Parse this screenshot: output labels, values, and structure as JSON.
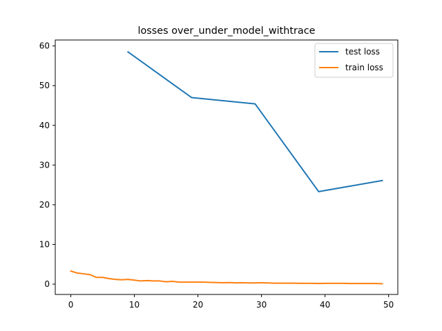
{
  "chart_data": {
    "type": "line",
    "title": "losses over_under_model_withtrace",
    "xlabel": "",
    "ylabel": "",
    "xlim": [
      -2.45,
      51.45
    ],
    "ylim": [
      -2.6,
      61.5
    ],
    "xticks": [
      0,
      10,
      20,
      30,
      40,
      50
    ],
    "yticks": [
      0,
      10,
      20,
      30,
      40,
      50,
      60
    ],
    "grid": false,
    "legend_position": "top-right",
    "series": [
      {
        "name": "test loss",
        "color": "#1f77b4",
        "x": [
          9,
          19,
          29,
          39,
          49
        ],
        "y": [
          58.5,
          47.0,
          45.4,
          23.3,
          26.1
        ]
      },
      {
        "name": "train loss",
        "color": "#ff7f0e",
        "x": [
          0,
          1,
          2,
          3,
          4,
          5,
          6,
          7,
          8,
          9,
          10,
          11,
          12,
          13,
          14,
          15,
          16,
          17,
          18,
          19,
          20,
          21,
          22,
          23,
          24,
          25,
          26,
          27,
          28,
          29,
          30,
          31,
          32,
          33,
          34,
          35,
          36,
          37,
          38,
          39,
          40,
          41,
          42,
          43,
          44,
          45,
          46,
          47,
          48,
          49
        ],
        "y": [
          3.3,
          2.8,
          2.6,
          2.4,
          1.7,
          1.7,
          1.4,
          1.2,
          1.1,
          1.2,
          1.0,
          0.8,
          0.9,
          0.8,
          0.8,
          0.6,
          0.7,
          0.5,
          0.5,
          0.5,
          0.5,
          0.5,
          0.45,
          0.4,
          0.35,
          0.4,
          0.3,
          0.35,
          0.3,
          0.3,
          0.35,
          0.3,
          0.25,
          0.25,
          0.25,
          0.25,
          0.2,
          0.2,
          0.2,
          0.15,
          0.2,
          0.2,
          0.2,
          0.2,
          0.15,
          0.15,
          0.15,
          0.15,
          0.15,
          0.1
        ]
      }
    ]
  }
}
